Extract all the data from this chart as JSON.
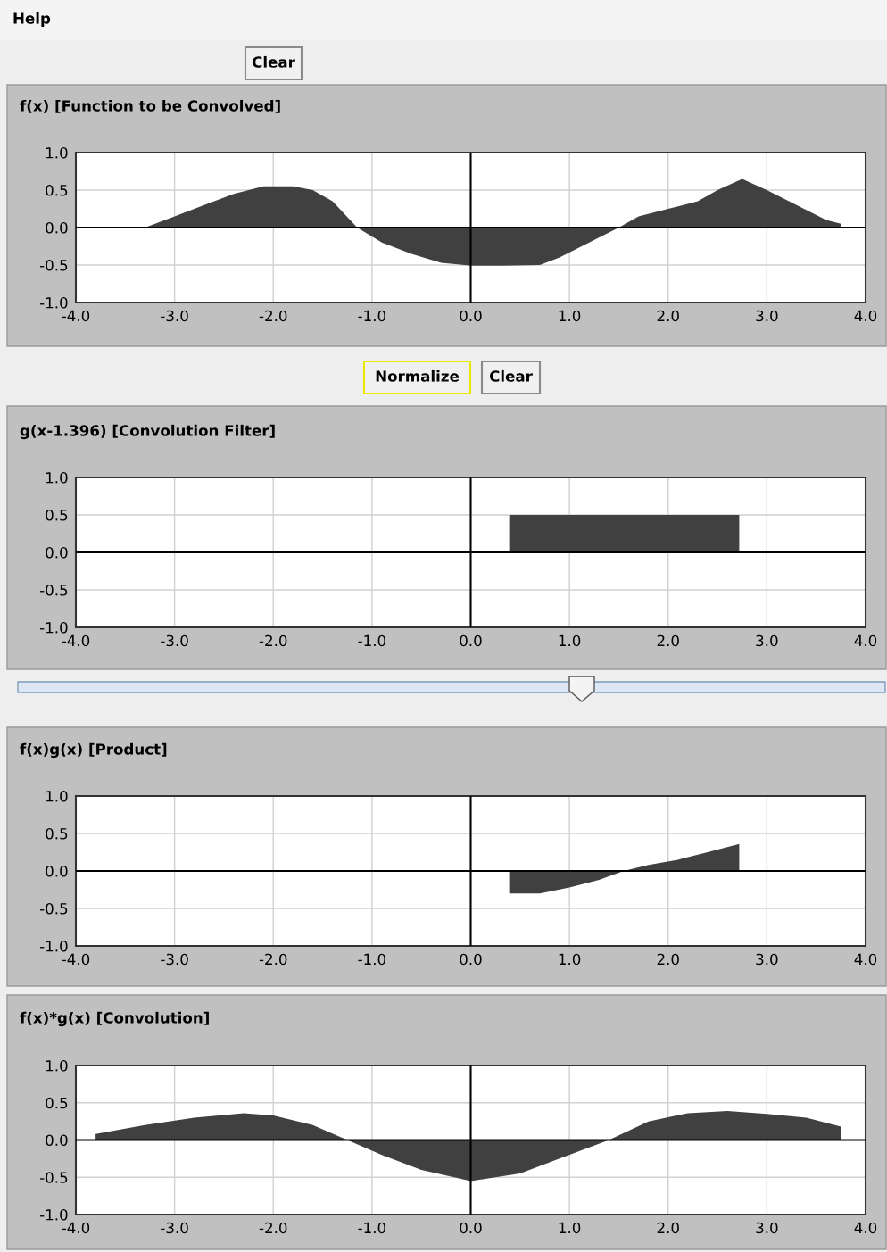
{
  "chart_data": [
    {
      "type": "other",
      "annotations": [
        "Help",
        "Clear"
      ]
    },
    {
      "type": "area",
      "title": "f(x) [Function to be Convolved]",
      "grid": true,
      "xlim": [
        -4.0,
        4.0
      ],
      "ylim": [
        -1.0,
        1.0
      ],
      "xticks": [
        {
          "value": -4,
          "label": "-4.0"
        },
        {
          "value": -3,
          "label": "-3.0"
        },
        {
          "value": -2,
          "label": "-2.0"
        },
        {
          "value": -1,
          "label": "-1.0"
        },
        {
          "value": 0,
          "label": "0.0"
        },
        {
          "value": 1,
          "label": "1.0"
        },
        {
          "value": 2,
          "label": "2.0"
        },
        {
          "value": 3,
          "label": "3.0"
        },
        {
          "value": 4,
          "label": "4.0"
        }
      ],
      "yticks": [
        {
          "value": -1,
          "label": "-1.0"
        },
        {
          "value": -0.5,
          "label": "-0.5"
        },
        {
          "value": 0,
          "label": "0.0"
        },
        {
          "value": 0.5,
          "label": "0.5"
        },
        {
          "value": 1,
          "label": "1.0"
        }
      ],
      "series": [
        {
          "color": "#404040",
          "x": [
            -3.3,
            -3.0,
            -2.7,
            -2.4,
            -2.1,
            -1.8,
            -1.6,
            -1.4,
            -1.15,
            -0.9,
            -0.6,
            -0.3,
            0.0,
            0.3,
            0.7,
            0.9,
            1.2,
            1.5,
            1.7,
            2.0,
            2.3,
            2.5,
            2.75,
            3.0,
            3.3,
            3.6,
            3.75
          ],
          "values": [
            0.0,
            0.15,
            0.3,
            0.45,
            0.55,
            0.55,
            0.5,
            0.35,
            0.0,
            -0.2,
            -0.35,
            -0.47,
            -0.51,
            -0.51,
            -0.5,
            -0.4,
            -0.2,
            0.0,
            0.15,
            0.25,
            0.35,
            0.5,
            0.65,
            0.5,
            0.3,
            0.1,
            0.05
          ]
        }
      ]
    },
    {
      "type": "other",
      "annotations": [
        "Normalize",
        "Clear"
      ]
    },
    {
      "type": "area",
      "title": "g(x-1.396) [Convolution Filter]",
      "grid": true,
      "xlim": [
        -4.0,
        4.0
      ],
      "ylim": [
        -1.0,
        1.0
      ],
      "xticks": [
        {
          "value": -4,
          "label": "-4.0"
        },
        {
          "value": -3,
          "label": "-3.0"
        },
        {
          "value": -2,
          "label": "-2.0"
        },
        {
          "value": -1,
          "label": "-1.0"
        },
        {
          "value": 0,
          "label": "0.0"
        },
        {
          "value": 1,
          "label": "1.0"
        },
        {
          "value": 2,
          "label": "2.0"
        },
        {
          "value": 3,
          "label": "3.0"
        },
        {
          "value": 4,
          "label": "4.0"
        }
      ],
      "yticks": [
        {
          "value": -1,
          "label": "-1.0"
        },
        {
          "value": -0.5,
          "label": "-0.5"
        },
        {
          "value": 0,
          "label": "0.0"
        },
        {
          "value": 0.5,
          "label": "0.5"
        },
        {
          "value": 1,
          "label": "1.0"
        }
      ],
      "series": [
        {
          "color": "#404040",
          "x": [
            0.39,
            0.39,
            2.72,
            2.72
          ],
          "values": [
            0.0,
            0.5,
            0.5,
            0.0
          ]
        }
      ]
    },
    {
      "type": "area",
      "title": "f(x)g(x) [Product]",
      "grid": true,
      "xlim": [
        -4.0,
        4.0
      ],
      "ylim": [
        -1.0,
        1.0
      ],
      "xticks": [
        {
          "value": -4,
          "label": "-4.0"
        },
        {
          "value": -3,
          "label": "-3.0"
        },
        {
          "value": -2,
          "label": "-2.0"
        },
        {
          "value": -1,
          "label": "-1.0"
        },
        {
          "value": 0,
          "label": "0.0"
        },
        {
          "value": 1,
          "label": "1.0"
        },
        {
          "value": 2,
          "label": "2.0"
        },
        {
          "value": 3,
          "label": "3.0"
        },
        {
          "value": 4,
          "label": "4.0"
        }
      ],
      "yticks": [
        {
          "value": -1,
          "label": "-1.0"
        },
        {
          "value": -0.5,
          "label": "-0.5"
        },
        {
          "value": 0,
          "label": "0.0"
        },
        {
          "value": 0.5,
          "label": "0.5"
        },
        {
          "value": 1,
          "label": "1.0"
        }
      ],
      "series": [
        {
          "color": "#404040",
          "x": [
            0.39,
            0.39,
            0.7,
            1.0,
            1.3,
            1.55,
            1.8,
            2.1,
            2.4,
            2.72,
            2.72
          ],
          "values": [
            0.0,
            -0.3,
            -0.3,
            -0.22,
            -0.12,
            0.0,
            0.08,
            0.15,
            0.25,
            0.36,
            0.0
          ]
        }
      ]
    },
    {
      "type": "area",
      "title": "f(x)*g(x) [Convolution]",
      "grid": true,
      "xlim": [
        -4.0,
        4.0
      ],
      "ylim": [
        -1.0,
        1.0
      ],
      "xticks": [
        {
          "value": -4,
          "label": "-4.0"
        },
        {
          "value": -3,
          "label": "-3.0"
        },
        {
          "value": -2,
          "label": "-2.0"
        },
        {
          "value": -1,
          "label": "-1.0"
        },
        {
          "value": 0,
          "label": "0.0"
        },
        {
          "value": 1,
          "label": "1.0"
        },
        {
          "value": 2,
          "label": "2.0"
        },
        {
          "value": 3,
          "label": "3.0"
        },
        {
          "value": 4,
          "label": "4.0"
        }
      ],
      "yticks": [
        {
          "value": -1,
          "label": "-1.0"
        },
        {
          "value": -0.5,
          "label": "-0.5"
        },
        {
          "value": 0,
          "label": "0.0"
        },
        {
          "value": 0.5,
          "label": "0.5"
        },
        {
          "value": 1,
          "label": "1.0"
        }
      ],
      "series": [
        {
          "color": "#404040",
          "x": [
            -3.8,
            -3.8,
            -3.3,
            -2.8,
            -2.3,
            -2.0,
            -1.6,
            -1.25,
            -0.9,
            -0.5,
            0.0,
            0.5,
            0.9,
            1.4,
            1.8,
            2.2,
            2.6,
            3.0,
            3.4,
            3.75,
            3.75
          ],
          "values": [
            0.0,
            0.08,
            0.2,
            0.3,
            0.36,
            0.33,
            0.2,
            0.0,
            -0.2,
            -0.4,
            -0.55,
            -0.45,
            -0.25,
            0.0,
            0.25,
            0.36,
            0.39,
            0.35,
            0.3,
            0.18,
            0.0
          ]
        }
      ]
    }
  ]
}
